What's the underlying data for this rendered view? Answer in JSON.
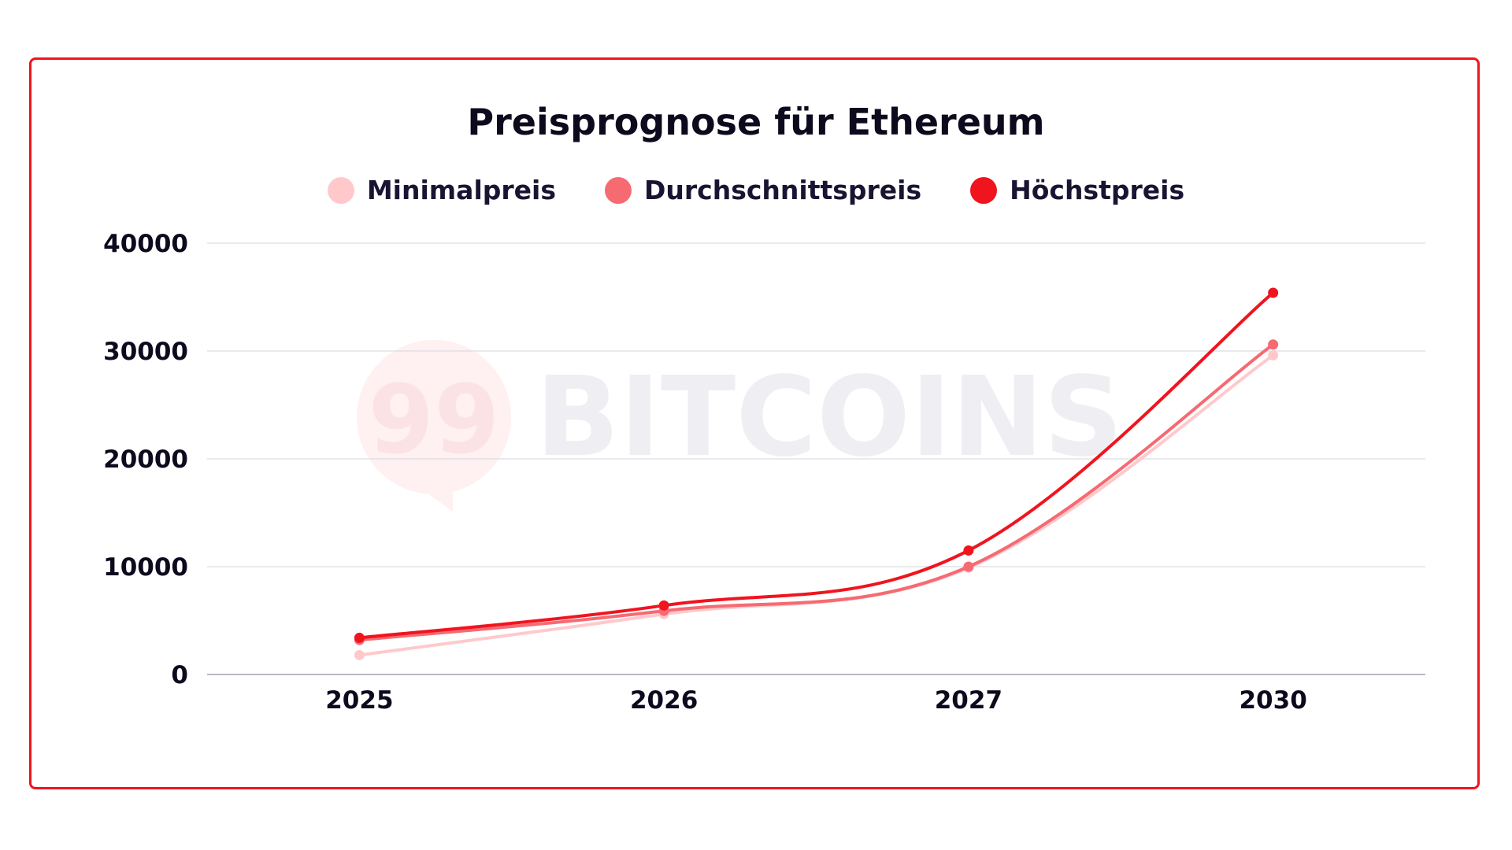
{
  "chart_data": {
    "type": "line",
    "title": "Preisprognose für Ethereum",
    "categories": [
      "2025",
      "2026",
      "2027",
      "2030"
    ],
    "series": [
      {
        "name": "Minimalpreis",
        "color": "#ffc9cc",
        "values": [
          1800,
          5600,
          9900,
          29600
        ]
      },
      {
        "name": "Durchschnittspreis",
        "color": "#f66a72",
        "values": [
          3200,
          5900,
          10000,
          30600
        ]
      },
      {
        "name": "Höchstpreis",
        "color": "#f0141e",
        "values": [
          3400,
          6400,
          11500,
          35400
        ]
      }
    ],
    "ylim": [
      0,
      40000
    ],
    "yticks": [
      "0",
      "10000",
      "20000",
      "30000",
      "40000"
    ],
    "xlabel": "",
    "ylabel": "",
    "grid": true,
    "legend": "top-center",
    "smooth": true
  },
  "watermark": {
    "text": "99 BITCOINS"
  },
  "colors": {
    "frame": "#f0141e",
    "text": "#0d0a1e",
    "grid": "#dcdce4"
  }
}
